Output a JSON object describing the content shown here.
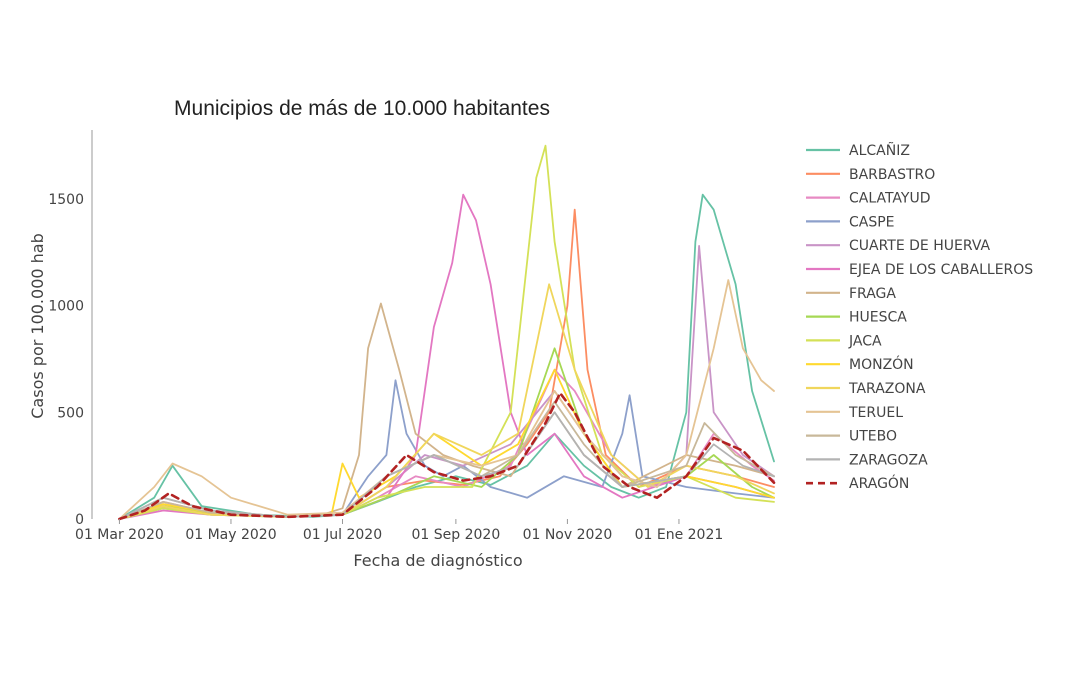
{
  "chart_data": {
    "type": "line",
    "title": "Municipios de más de 10.000 habitantes",
    "xlabel": "Fecha de diagnóstico",
    "ylabel": "Casos por 100.000 hab",
    "ylim": [
      0,
      1800
    ],
    "xlim": [
      "2020-02-15",
      "2021-02-28"
    ],
    "x_ticks": [
      {
        "date": "2020-03-01",
        "label": "01 Mar 2020"
      },
      {
        "date": "2020-05-01",
        "label": "01 May 2020"
      },
      {
        "date": "2020-07-01",
        "label": "01 Jul 2020"
      },
      {
        "date": "2020-09-01",
        "label": "01 Sep 2020"
      },
      {
        "date": "2020-11-01",
        "label": "01 Nov 2020"
      },
      {
        "date": "2021-01-01",
        "label": "01 Ene 2021"
      }
    ],
    "y_ticks": [
      0,
      500,
      1000,
      1500
    ],
    "grid": false,
    "legend_position": "right",
    "series": [
      {
        "name": "ALCAÑIZ",
        "color": "#66c2a5",
        "dash": false,
        "x": [
          "2020-03-01",
          "2020-03-20",
          "2020-03-30",
          "2020-04-15",
          "2020-05-15",
          "2020-06-15",
          "2020-07-01",
          "2020-07-20",
          "2020-08-10",
          "2020-09-01",
          "2020-09-20",
          "2020-10-10",
          "2020-10-25",
          "2020-11-10",
          "2020-11-25",
          "2020-12-10",
          "2020-12-25",
          "2021-01-05",
          "2021-01-10",
          "2021-01-14",
          "2021-01-20",
          "2021-02-01",
          "2021-02-10",
          "2021-02-22"
        ],
        "values": [
          0,
          100,
          250,
          60,
          20,
          10,
          20,
          80,
          150,
          200,
          160,
          250,
          400,
          250,
          150,
          100,
          150,
          500,
          1300,
          1520,
          1450,
          1100,
          600,
          270
        ]
      },
      {
        "name": "BARBASTRO",
        "color": "#fc8d62",
        "dash": false,
        "x": [
          "2020-03-01",
          "2020-03-25",
          "2020-04-15",
          "2020-06-01",
          "2020-07-01",
          "2020-07-25",
          "2020-08-15",
          "2020-09-05",
          "2020-09-25",
          "2020-10-10",
          "2020-10-22",
          "2020-11-01",
          "2020-11-05",
          "2020-11-12",
          "2020-11-22",
          "2020-12-10",
          "2021-01-05",
          "2021-02-01",
          "2021-02-22"
        ],
        "values": [
          0,
          60,
          30,
          10,
          20,
          150,
          180,
          160,
          200,
          350,
          500,
          1000,
          1450,
          700,
          300,
          150,
          250,
          200,
          150
        ]
      },
      {
        "name": "CALATAYUD",
        "color": "#e78ac3",
        "dash": false,
        "x": [
          "2020-03-01",
          "2020-03-25",
          "2020-04-20",
          "2020-06-01",
          "2020-07-01",
          "2020-07-20",
          "2020-08-10",
          "2020-09-05",
          "2020-10-01",
          "2020-10-25",
          "2020-11-05",
          "2020-11-25",
          "2020-12-15",
          "2021-01-05",
          "2021-01-20",
          "2021-02-10",
          "2021-02-22"
        ],
        "values": [
          0,
          80,
          30,
          10,
          20,
          100,
          200,
          150,
          250,
          700,
          600,
          300,
          150,
          200,
          400,
          250,
          180
        ]
      },
      {
        "name": "CASPE",
        "color": "#8da0cb",
        "dash": false,
        "x": [
          "2020-03-01",
          "2020-03-25",
          "2020-04-20",
          "2020-06-01",
          "2020-07-01",
          "2020-07-15",
          "2020-07-25",
          "2020-07-30",
          "2020-08-05",
          "2020-08-15",
          "2020-08-25",
          "2020-09-05",
          "2020-09-20",
          "2020-10-10",
          "2020-10-30",
          "2020-11-20",
          "2020-12-01",
          "2020-12-05",
          "2020-12-12",
          "2021-01-05",
          "2021-02-01",
          "2021-02-22"
        ],
        "values": [
          0,
          50,
          20,
          10,
          20,
          200,
          300,
          650,
          400,
          250,
          200,
          250,
          150,
          100,
          200,
          150,
          400,
          580,
          200,
          150,
          120,
          100
        ]
      },
      {
        "name": "CUARTE DE HUERVA",
        "color": "#c994c7",
        "dash": false,
        "x": [
          "2020-03-01",
          "2020-03-25",
          "2020-04-20",
          "2020-06-01",
          "2020-07-01",
          "2020-07-25",
          "2020-08-15",
          "2020-09-05",
          "2020-10-01",
          "2020-10-25",
          "2020-11-10",
          "2020-12-01",
          "2020-12-20",
          "2021-01-05",
          "2021-01-12",
          "2021-01-20",
          "2021-02-05",
          "2021-02-22"
        ],
        "values": [
          0,
          70,
          30,
          10,
          20,
          150,
          300,
          250,
          350,
          600,
          400,
          200,
          150,
          300,
          1280,
          500,
          300,
          200
        ]
      },
      {
        "name": "EJEA DE LOS CABALLEROS",
        "color": "#e377c2",
        "dash": false,
        "x": [
          "2020-03-01",
          "2020-03-25",
          "2020-04-20",
          "2020-06-01",
          "2020-07-01",
          "2020-07-25",
          "2020-08-10",
          "2020-08-20",
          "2020-08-30",
          "2020-09-05",
          "2020-09-12",
          "2020-09-20",
          "2020-10-01",
          "2020-10-10",
          "2020-10-25",
          "2020-11-10",
          "2020-12-01",
          "2021-01-05",
          "2021-02-01",
          "2021-02-22"
        ],
        "values": [
          0,
          40,
          20,
          10,
          20,
          100,
          300,
          900,
          1200,
          1520,
          1400,
          1100,
          500,
          300,
          400,
          200,
          100,
          200,
          150,
          100
        ]
      },
      {
        "name": "FRAGA",
        "color": "#d2b48c",
        "dash": false,
        "x": [
          "2020-03-01",
          "2020-03-25",
          "2020-04-20",
          "2020-06-01",
          "2020-06-20",
          "2020-07-01",
          "2020-07-10",
          "2020-07-15",
          "2020-07-22",
          "2020-08-01",
          "2020-08-10",
          "2020-08-25",
          "2020-09-10",
          "2020-10-01",
          "2020-10-25",
          "2020-11-10",
          "2020-12-01",
          "2021-01-05",
          "2021-02-01",
          "2021-02-22"
        ],
        "values": [
          0,
          100,
          40,
          10,
          20,
          50,
          300,
          800,
          1010,
          700,
          400,
          300,
          250,
          200,
          500,
          300,
          150,
          300,
          250,
          200
        ]
      },
      {
        "name": "HUESCA",
        "color": "#a6d854",
        "dash": false,
        "x": [
          "2020-03-01",
          "2020-03-25",
          "2020-04-20",
          "2020-06-01",
          "2020-07-01",
          "2020-07-25",
          "2020-08-20",
          "2020-09-15",
          "2020-10-05",
          "2020-10-25",
          "2020-11-10",
          "2020-12-01",
          "2021-01-05",
          "2021-01-20",
          "2021-02-10",
          "2021-02-22"
        ],
        "values": [
          0,
          60,
          30,
          10,
          20,
          100,
          200,
          150,
          300,
          800,
          400,
          150,
          200,
          300,
          150,
          100
        ]
      },
      {
        "name": "JACA",
        "color": "#d4e157",
        "dash": false,
        "x": [
          "2020-03-01",
          "2020-03-25",
          "2020-04-20",
          "2020-06-01",
          "2020-07-01",
          "2020-07-20",
          "2020-08-15",
          "2020-09-10",
          "2020-10-01",
          "2020-10-15",
          "2020-10-20",
          "2020-10-25",
          "2020-11-05",
          "2020-11-20",
          "2020-12-10",
          "2021-01-05",
          "2021-02-01",
          "2021-02-22"
        ],
        "values": [
          0,
          50,
          20,
          10,
          20,
          100,
          150,
          150,
          500,
          1600,
          1750,
          1300,
          700,
          300,
          150,
          200,
          100,
          80
        ]
      },
      {
        "name": "MONZÓN",
        "color": "#ffd92f",
        "dash": false,
        "x": [
          "2020-03-01",
          "2020-03-25",
          "2020-04-20",
          "2020-06-01",
          "2020-06-25",
          "2020-07-01",
          "2020-07-10",
          "2020-07-30",
          "2020-08-20",
          "2020-09-15",
          "2020-10-05",
          "2020-10-25",
          "2020-11-10",
          "2020-12-01",
          "2021-01-05",
          "2021-02-01",
          "2021-02-22"
        ],
        "values": [
          0,
          70,
          30,
          10,
          20,
          260,
          100,
          200,
          400,
          250,
          350,
          700,
          400,
          150,
          200,
          150,
          100
        ]
      },
      {
        "name": "TARAZONA",
        "color": "#f0d65c",
        "dash": false,
        "x": [
          "2020-03-01",
          "2020-03-25",
          "2020-04-20",
          "2020-06-01",
          "2020-07-01",
          "2020-07-25",
          "2020-08-20",
          "2020-09-15",
          "2020-10-05",
          "2020-10-22",
          "2020-11-05",
          "2020-11-25",
          "2020-12-15",
          "2021-01-05",
          "2021-02-01",
          "2021-02-22"
        ],
        "values": [
          0,
          60,
          20,
          10,
          20,
          150,
          400,
          300,
          400,
          1100,
          700,
          300,
          150,
          250,
          200,
          120
        ]
      },
      {
        "name": "TERUEL",
        "color": "#e5c494",
        "dash": false,
        "x": [
          "2020-03-01",
          "2020-03-20",
          "2020-03-30",
          "2020-04-15",
          "2020-05-01",
          "2020-06-01",
          "2020-07-01",
          "2020-07-25",
          "2020-08-20",
          "2020-09-15",
          "2020-10-05",
          "2020-10-25",
          "2020-11-10",
          "2020-12-01",
          "2020-12-20",
          "2021-01-05",
          "2021-01-20",
          "2021-01-28",
          "2021-02-05",
          "2021-02-15",
          "2021-02-22"
        ],
        "values": [
          0,
          150,
          260,
          200,
          100,
          20,
          30,
          200,
          300,
          250,
          300,
          600,
          400,
          200,
          150,
          300,
          800,
          1120,
          800,
          650,
          600
        ]
      },
      {
        "name": "UTEBO",
        "color": "#c8b89a",
        "dash": false,
        "x": [
          "2020-03-01",
          "2020-03-25",
          "2020-04-20",
          "2020-06-01",
          "2020-07-01",
          "2020-07-25",
          "2020-08-20",
          "2020-09-15",
          "2020-10-05",
          "2020-10-25",
          "2020-11-10",
          "2020-12-01",
          "2021-01-05",
          "2021-01-15",
          "2021-02-01",
          "2021-02-22"
        ],
        "values": [
          0,
          80,
          30,
          10,
          20,
          200,
          300,
          200,
          300,
          550,
          350,
          150,
          250,
          450,
          300,
          200
        ]
      },
      {
        "name": "ZARAGOZA",
        "color": "#b3b3b3",
        "dash": false,
        "x": [
          "2020-03-01",
          "2020-03-25",
          "2020-04-20",
          "2020-06-01",
          "2020-07-01",
          "2020-07-25",
          "2020-08-20",
          "2020-09-15",
          "2020-10-05",
          "2020-10-25",
          "2020-11-10",
          "2020-12-01",
          "2021-01-05",
          "2021-01-20",
          "2021-02-05",
          "2021-02-22"
        ],
        "values": [
          0,
          100,
          40,
          10,
          20,
          200,
          300,
          200,
          250,
          500,
          300,
          150,
          200,
          350,
          250,
          200
        ]
      },
      {
        "name": "ARAGÓN",
        "color": "#b22222",
        "dash": true,
        "x": [
          "2020-03-01",
          "2020-03-15",
          "2020-03-28",
          "2020-04-10",
          "2020-05-01",
          "2020-06-01",
          "2020-07-01",
          "2020-07-20",
          "2020-08-05",
          "2020-08-20",
          "2020-09-05",
          "2020-09-20",
          "2020-10-05",
          "2020-10-20",
          "2020-10-28",
          "2020-11-05",
          "2020-11-20",
          "2020-12-05",
          "2020-12-20",
          "2021-01-05",
          "2021-01-20",
          "2021-02-05",
          "2021-02-22"
        ],
        "values": [
          0,
          40,
          120,
          60,
          20,
          10,
          20,
          150,
          300,
          220,
          180,
          200,
          250,
          450,
          590,
          500,
          250,
          150,
          100,
          200,
          380,
          320,
          170
        ]
      }
    ]
  }
}
